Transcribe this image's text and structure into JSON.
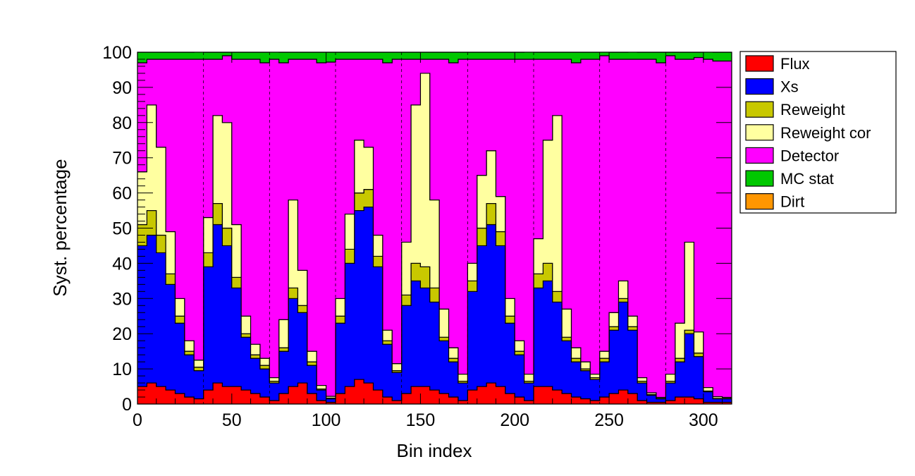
{
  "chart_data": {
    "type": "area",
    "title": "",
    "xlabel": "Bin index",
    "ylabel": "Syst. percentage",
    "xlim": [
      0,
      315
    ],
    "ylim": [
      0,
      100
    ],
    "x_ticks": [
      0,
      50,
      100,
      150,
      200,
      250,
      300
    ],
    "y_ticks": [
      0,
      10,
      20,
      30,
      40,
      50,
      60,
      70,
      80,
      90,
      100
    ],
    "divider_bins": [
      35,
      70,
      105,
      140,
      175,
      210,
      245,
      280
    ],
    "legend_position": "right",
    "stacked_order_bottom_to_top": [
      "Flux",
      "Xs",
      "Reweight",
      "Reweight cor",
      "Detector",
      "MC stat",
      "Dirt"
    ],
    "series": [
      {
        "name": "Flux",
        "color": "#ff0000",
        "x": [
          0,
          5,
          10,
          15,
          20,
          25,
          30,
          35,
          40,
          45,
          50,
          55,
          60,
          65,
          70,
          75,
          80,
          85,
          90,
          95,
          100,
          105,
          110,
          115,
          120,
          125,
          130,
          135,
          140,
          145,
          150,
          155,
          160,
          165,
          170,
          175,
          180,
          185,
          190,
          195,
          200,
          205,
          210,
          215,
          220,
          225,
          230,
          235,
          240,
          245,
          250,
          255,
          260,
          265,
          270,
          275,
          280,
          285,
          290,
          295,
          300,
          305,
          310,
          315
        ],
        "values": [
          5,
          6,
          5,
          4,
          3,
          2,
          1.5,
          4,
          6,
          5,
          5,
          4,
          3,
          2,
          1,
          3,
          5,
          6,
          3,
          1,
          0.5,
          3,
          5,
          7,
          6,
          4,
          2,
          1,
          3,
          5,
          5,
          4,
          3,
          2,
          1,
          4,
          5,
          6,
          5,
          3,
          2,
          1,
          5,
          5,
          4,
          3,
          2,
          1.5,
          1,
          2,
          3,
          4,
          3,
          1,
          0.5,
          0.5,
          1,
          2,
          2,
          1.5,
          0.5,
          0.5,
          0.5,
          0.5
        ]
      },
      {
        "name": "Xs",
        "color": "#0000ff",
        "x": [
          0,
          5,
          10,
          15,
          20,
          25,
          30,
          35,
          40,
          45,
          50,
          55,
          60,
          65,
          70,
          75,
          80,
          85,
          90,
          95,
          100,
          105,
          110,
          115,
          120,
          125,
          130,
          135,
          140,
          145,
          150,
          155,
          160,
          165,
          170,
          175,
          180,
          185,
          190,
          195,
          200,
          205,
          210,
          215,
          220,
          225,
          230,
          235,
          240,
          245,
          250,
          255,
          260,
          265,
          270,
          275,
          280,
          285,
          290,
          295,
          300,
          305,
          310,
          315
        ],
        "values": [
          40,
          42,
          38,
          30,
          20,
          12,
          8,
          35,
          45,
          40,
          28,
          15,
          10,
          8,
          5,
          12,
          25,
          20,
          8,
          3,
          1,
          20,
          35,
          48,
          50,
          35,
          15,
          8,
          25,
          30,
          28,
          25,
          15,
          10,
          5,
          28,
          40,
          45,
          40,
          20,
          12,
          5,
          28,
          30,
          25,
          15,
          10,
          8,
          6,
          10,
          18,
          25,
          18,
          5,
          2,
          1,
          5,
          10,
          18,
          12,
          3,
          1,
          1,
          1
        ]
      },
      {
        "name": "Reweight",
        "color": "#c8c800",
        "x": [
          0,
          5,
          10,
          15,
          20,
          25,
          30,
          35,
          40,
          45,
          50,
          55,
          60,
          65,
          70,
          75,
          80,
          85,
          90,
          95,
          100,
          105,
          110,
          115,
          120,
          125,
          130,
          135,
          140,
          145,
          150,
          155,
          160,
          165,
          170,
          175,
          180,
          185,
          190,
          195,
          200,
          205,
          210,
          215,
          220,
          225,
          230,
          235,
          240,
          245,
          250,
          255,
          260,
          265,
          270,
          275,
          280,
          285,
          290,
          295,
          300,
          305,
          310,
          315
        ],
        "values": [
          6,
          7,
          5,
          3,
          2,
          1,
          1,
          4,
          6,
          5,
          3,
          1,
          1,
          1,
          0.5,
          1,
          3,
          2,
          1,
          0.3,
          0.2,
          2,
          4,
          5,
          5,
          3,
          1,
          0.5,
          3,
          5,
          6,
          4,
          1,
          1,
          0.5,
          3,
          5,
          6,
          4,
          2,
          1,
          0.5,
          4,
          5,
          3,
          1,
          1,
          0.5,
          0.5,
          1,
          1,
          1,
          1,
          0.5,
          0.2,
          0.1,
          0.5,
          1,
          1,
          1,
          0.2,
          0.1,
          0.1,
          0.1
        ]
      },
      {
        "name": "Reweight cor",
        "color": "#ffffa0",
        "x": [
          0,
          5,
          10,
          15,
          20,
          25,
          30,
          35,
          40,
          45,
          50,
          55,
          60,
          65,
          70,
          75,
          80,
          85,
          90,
          95,
          100,
          105,
          110,
          115,
          120,
          125,
          130,
          135,
          140,
          145,
          150,
          155,
          160,
          165,
          170,
          175,
          180,
          185,
          190,
          195,
          200,
          205,
          210,
          215,
          220,
          225,
          230,
          235,
          240,
          245,
          250,
          255,
          260,
          265,
          270,
          275,
          280,
          285,
          290,
          295,
          300,
          305,
          310,
          315
        ],
        "values": [
          15,
          30,
          25,
          12,
          5,
          3,
          2,
          10,
          25,
          30,
          15,
          5,
          3,
          2,
          1,
          8,
          25,
          10,
          3,
          1,
          0.5,
          5,
          10,
          15,
          12,
          6,
          3,
          2,
          15,
          45,
          55,
          25,
          8,
          3,
          2,
          5,
          15,
          15,
          10,
          5,
          3,
          2,
          10,
          35,
          50,
          8,
          3,
          2,
          1,
          2,
          4,
          5,
          3,
          1,
          0.5,
          0.3,
          2,
          10,
          25,
          6,
          1,
          0.5,
          0.3,
          0.3
        ]
      },
      {
        "name": "Detector",
        "color": "#ff00ff",
        "x": [
          0,
          5,
          10,
          15,
          20,
          25,
          30,
          35,
          40,
          45,
          50,
          55,
          60,
          65,
          70,
          75,
          80,
          85,
          90,
          95,
          100,
          105,
          110,
          115,
          120,
          125,
          130,
          135,
          140,
          145,
          150,
          155,
          160,
          165,
          170,
          175,
          180,
          185,
          190,
          195,
          200,
          205,
          210,
          215,
          220,
          225,
          230,
          235,
          240,
          245,
          250,
          255,
          260,
          265,
          270,
          275,
          280,
          285,
          290,
          295,
          300,
          305,
          310,
          315
        ],
        "values": [
          31,
          13,
          25,
          49,
          68,
          80,
          85.5,
          45,
          16,
          19,
          47,
          73,
          81,
          84,
          90.5,
          73,
          40,
          60,
          83,
          91.7,
          95,
          68,
          44,
          23,
          25,
          50,
          76,
          86.5,
          52,
          13,
          4,
          40,
          71,
          81,
          89.5,
          58,
          33,
          26,
          39,
          68,
          80,
          89.5,
          51,
          23,
          16,
          71,
          81,
          86,
          89.5,
          84,
          72,
          63,
          73,
          90.5,
          94.8,
          95.1,
          90.5,
          75,
          52,
          78,
          93.3,
          95.4,
          95.6,
          95.6
        ]
      },
      {
        "name": "MC stat",
        "color": "#00c800",
        "x": [
          0,
          5,
          10,
          15,
          20,
          25,
          30,
          35,
          40,
          45,
          50,
          55,
          60,
          65,
          70,
          75,
          80,
          85,
          90,
          95,
          100,
          105,
          110,
          115,
          120,
          125,
          130,
          135,
          140,
          145,
          150,
          155,
          160,
          165,
          170,
          175,
          180,
          185,
          190,
          195,
          200,
          205,
          210,
          215,
          220,
          225,
          230,
          235,
          240,
          245,
          250,
          255,
          260,
          265,
          270,
          275,
          280,
          285,
          290,
          295,
          300,
          305,
          310,
          315
        ],
        "values": [
          3,
          2,
          2,
          2,
          2,
          2,
          2.5,
          2,
          2,
          1,
          2,
          2,
          2,
          3,
          3,
          3,
          2,
          2,
          2,
          3,
          2.8,
          2,
          2,
          2,
          2,
          2,
          3,
          2,
          2,
          2,
          2,
          2,
          2,
          3,
          2,
          2,
          2,
          2,
          2,
          2,
          2,
          3,
          2,
          2,
          2,
          2,
          3,
          2,
          2,
          2,
          2,
          2,
          4,
          2,
          2,
          3,
          1,
          2,
          2,
          1.5,
          3,
          2.5,
          2.5,
          2.5
        ]
      },
      {
        "name": "Dirt",
        "color": "#ff9600",
        "x": [
          0,
          5,
          10,
          15,
          20,
          25,
          30,
          35,
          40,
          45,
          50,
          55,
          60,
          65,
          70,
          75,
          80,
          85,
          90,
          95,
          100,
          105,
          110,
          115,
          120,
          125,
          130,
          135,
          140,
          145,
          150,
          155,
          160,
          165,
          170,
          175,
          180,
          185,
          190,
          195,
          200,
          205,
          210,
          215,
          220,
          225,
          230,
          235,
          240,
          245,
          250,
          255,
          260,
          265,
          270,
          275,
          280,
          285,
          290,
          295,
          300,
          305,
          310,
          315
        ],
        "values": [
          0,
          0,
          0,
          0,
          0,
          0,
          0,
          0,
          0,
          0,
          0,
          0,
          0,
          0,
          0,
          0,
          0,
          0,
          0,
          0,
          0,
          0,
          0,
          0,
          0,
          0,
          0,
          0,
          0,
          0,
          0,
          0,
          0,
          0,
          0,
          0,
          0,
          0,
          0,
          0,
          0,
          0,
          0,
          0,
          0,
          0,
          0,
          0,
          0,
          0,
          0,
          0,
          0,
          0,
          0,
          0,
          0,
          0,
          0,
          0,
          0,
          0,
          0,
          0
        ]
      }
    ]
  }
}
